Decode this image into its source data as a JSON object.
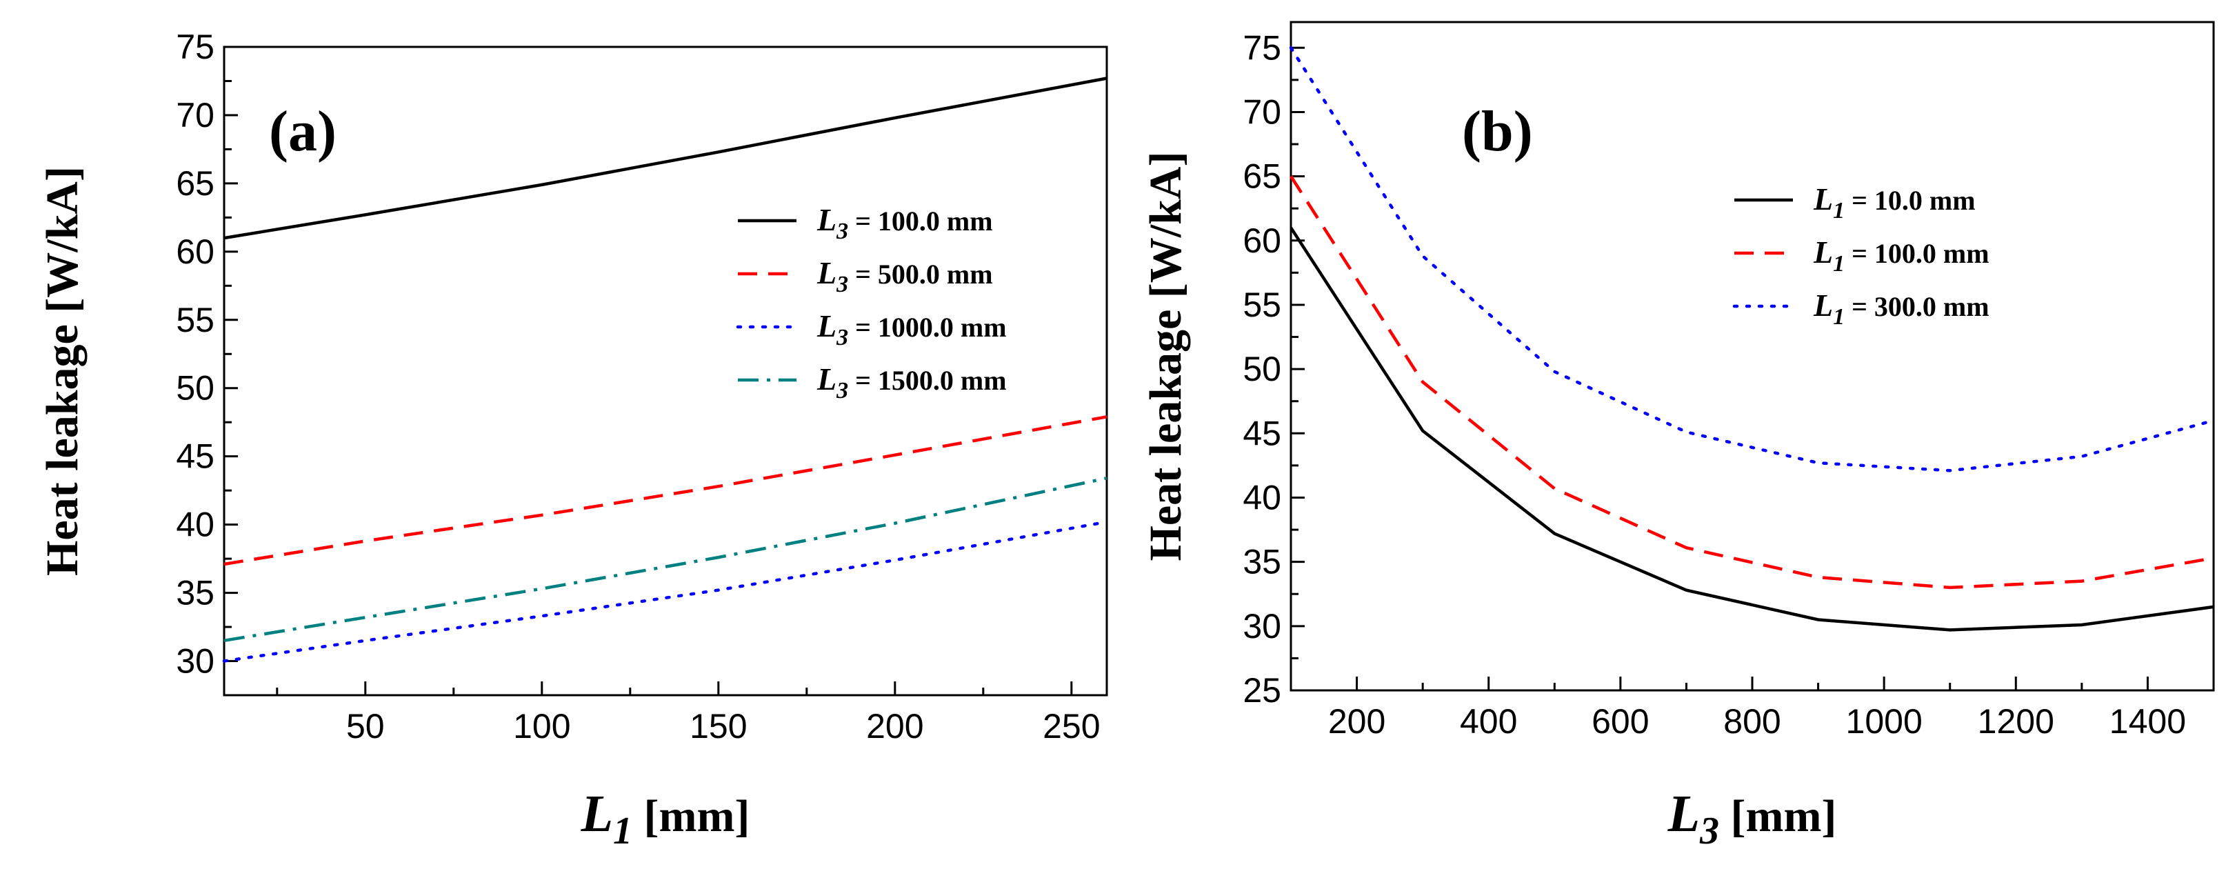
{
  "chart_data": [
    {
      "type": "line",
      "panel_label": "(a)",
      "xlabel": "L1 [mm]",
      "xlabel_var": "L",
      "xlabel_sub": "1",
      "xlabel_unit": " [mm]",
      "ylabel": "Heat leakage  [W/kA]",
      "xlim": [
        10,
        260
      ],
      "ylim": [
        27.5,
        75
      ],
      "xticks": [
        50,
        100,
        150,
        200,
        250
      ],
      "yticks": [
        30,
        35,
        40,
        45,
        50,
        55,
        60,
        65,
        70,
        75
      ],
      "grid": false,
      "legend_placement": "right",
      "series": [
        {
          "name": "L3 = 100.0 mm",
          "var": "L",
          "sub": "3",
          "rest": " = 100.0 mm",
          "color": "#000000",
          "dash": "solid",
          "x": [
            10,
            50,
            100,
            150,
            200,
            260
          ],
          "y": [
            61.0,
            62.7,
            64.9,
            67.3,
            69.8,
            72.7
          ]
        },
        {
          "name": "L3 = 500.0 mm",
          "var": "L",
          "sub": "3",
          "rest": " = 500.0 mm",
          "color": "#ff0000",
          "dash": "dashed",
          "x": [
            10,
            50,
            100,
            150,
            200,
            260
          ],
          "y": [
            37.1,
            38.8,
            40.7,
            42.8,
            45.1,
            47.9
          ]
        },
        {
          "name": "L3 = 1000.0 mm",
          "var": "L",
          "sub": "3",
          "rest": " = 1000.0 mm",
          "color": "#0000ff",
          "dash": "dotted",
          "x": [
            10,
            50,
            100,
            150,
            200,
            260
          ],
          "y": [
            30.0,
            31.5,
            33.3,
            35.2,
            37.4,
            40.2
          ]
        },
        {
          "name": "L3 = 1500.0 mm",
          "var": "L",
          "sub": "3",
          "rest": " = 1500.0 mm",
          "color": "#008080",
          "dash": "dashdot",
          "x": [
            10,
            50,
            100,
            150,
            200,
            260
          ],
          "y": [
            31.5,
            33.2,
            35.3,
            37.6,
            40.1,
            43.4
          ]
        }
      ]
    },
    {
      "type": "line",
      "panel_label": "(b)",
      "xlabel": "L3 [mm]",
      "xlabel_var": "L",
      "xlabel_sub": "3",
      "xlabel_unit": " [mm]",
      "ylabel": "Heat leakage  [W/kA]",
      "xlim": [
        100,
        1500
      ],
      "ylim": [
        25,
        77
      ],
      "xticks": [
        200,
        400,
        600,
        800,
        1000,
        1200,
        1400
      ],
      "yticks": [
        25,
        30,
        35,
        40,
        45,
        50,
        55,
        60,
        65,
        70,
        75
      ],
      "grid": false,
      "legend_placement": "top-right",
      "series": [
        {
          "name": "L1 = 10.0 mm",
          "var": "L",
          "sub": "1",
          "rest": " = 10.0 mm",
          "color": "#000000",
          "dash": "solid",
          "x": [
            100,
            300,
            500,
            700,
            900,
            1100,
            1300,
            1500
          ],
          "y": [
            61.0,
            45.2,
            37.2,
            32.8,
            30.5,
            29.7,
            30.1,
            31.5
          ]
        },
        {
          "name": "L1 = 100.0 mm",
          "var": "L",
          "sub": "1",
          "rest": " = 100.0 mm",
          "color": "#ff0000",
          "dash": "dashed",
          "x": [
            100,
            300,
            500,
            700,
            900,
            1100,
            1300,
            1500
          ],
          "y": [
            65.0,
            49.0,
            40.7,
            36.1,
            33.8,
            33.0,
            33.5,
            35.3
          ]
        },
        {
          "name": "L1 = 300.0 mm",
          "var": "L",
          "sub": "1",
          "rest": " = 300.0 mm",
          "color": "#0000ff",
          "dash": "dotted",
          "x": [
            100,
            300,
            500,
            700,
            900,
            1100,
            1300,
            1500
          ],
          "y": [
            75.0,
            58.8,
            49.8,
            45.1,
            42.7,
            42.1,
            43.2,
            46.0
          ]
        }
      ]
    }
  ]
}
